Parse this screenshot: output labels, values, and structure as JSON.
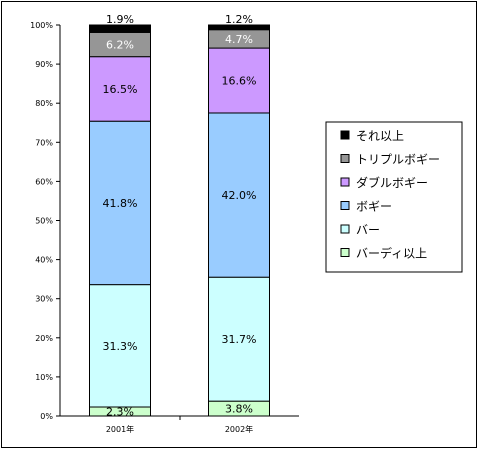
{
  "chart_data": {
    "type": "bar",
    "stacked": true,
    "percent": true,
    "categories": [
      "2001年",
      "2002年"
    ],
    "ylim": [
      0,
      100
    ],
    "y_ticks": [
      "0%",
      "10%",
      "20%",
      "30%",
      "40%",
      "50%",
      "60%",
      "70%",
      "80%",
      "90%",
      "100%"
    ],
    "legend_position": "right",
    "series": [
      {
        "name": "バーディ以上",
        "color": "#ccffcc",
        "values": [
          2.3,
          3.8
        ],
        "labels": [
          "2.3%",
          "3.8%"
        ]
      },
      {
        "name": "バー",
        "color": "#ccffff",
        "values": [
          31.3,
          31.7
        ],
        "labels": [
          "31.3%",
          "31.7%"
        ]
      },
      {
        "name": "ボギー",
        "color": "#99ccff",
        "values": [
          41.8,
          42.0
        ],
        "labels": [
          "41.8%",
          "42.0%"
        ]
      },
      {
        "name": "ダブルボギー",
        "color": "#cc99ff",
        "values": [
          16.5,
          16.6
        ],
        "labels": [
          "16.5%",
          "16.6%"
        ]
      },
      {
        "name": "トリプルボギー",
        "color": "#969696",
        "values": [
          6.2,
          4.7
        ],
        "labels": [
          "6.2%",
          "4.7%"
        ]
      },
      {
        "name": "それ以上",
        "color": "#000000",
        "values": [
          1.9,
          1.2
        ],
        "labels": [
          "1.9%",
          "1.2%"
        ]
      }
    ],
    "legend_order": [
      "それ以上",
      "トリプルボギー",
      "ダブルボギー",
      "ボギー",
      "バー",
      "バーディ以上"
    ]
  }
}
